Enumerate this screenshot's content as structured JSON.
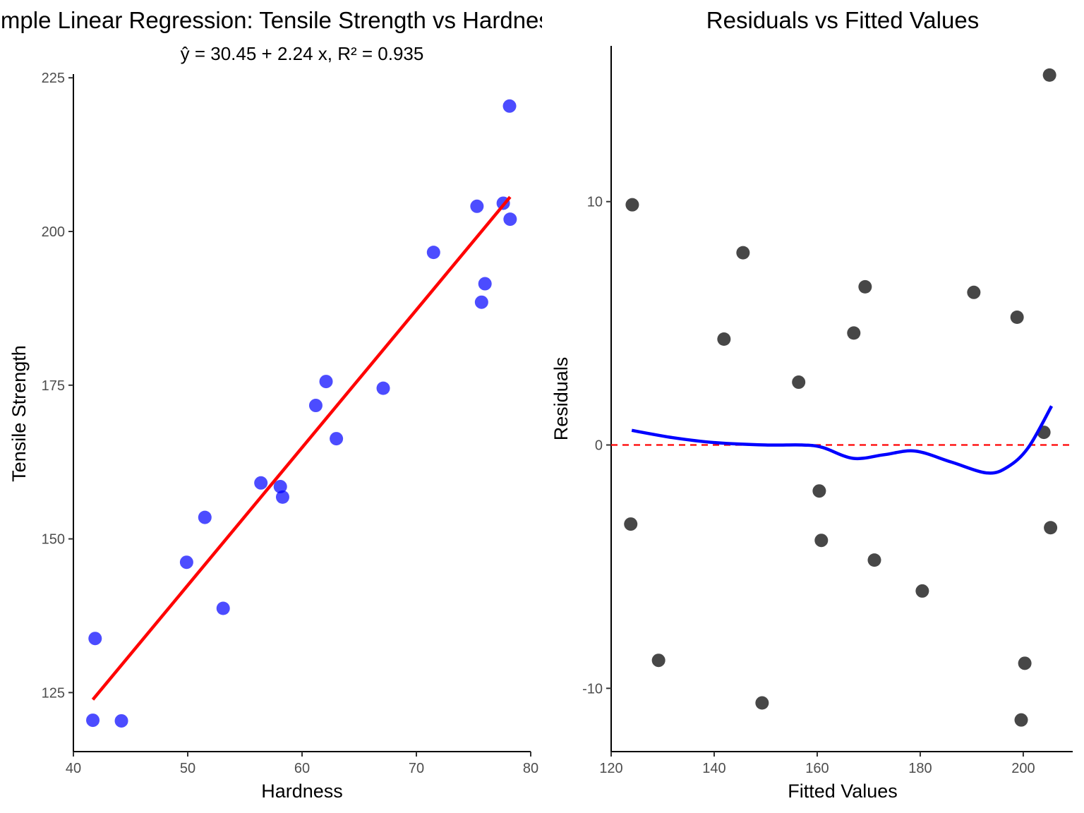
{
  "chart_data": [
    {
      "type": "scatter",
      "title": "Simple Linear Regression: Tensile Strength vs Hardness",
      "subtitle": "ŷ = 30.45 + 2.24 x, R² = 0.935",
      "xlabel": "Hardness",
      "ylabel": "Tensile Strength",
      "xlim": [
        40,
        80
      ],
      "ylim": [
        115.4,
        225.6
      ],
      "xticks": [
        40,
        50,
        60,
        70,
        80
      ],
      "yticks": [
        125,
        150,
        175,
        200,
        225
      ],
      "grid": false,
      "point_color": "#0000FF",
      "line_color": "#FF0000",
      "points": [
        {
          "x": 78.15,
          "y": 220.4
        },
        {
          "x": 77.6,
          "y": 204.6
        },
        {
          "x": 75.3,
          "y": 204.1
        },
        {
          "x": 78.2,
          "y": 202.0
        },
        {
          "x": 71.5,
          "y": 196.6
        },
        {
          "x": 76.0,
          "y": 191.5
        },
        {
          "x": 75.7,
          "y": 188.5
        },
        {
          "x": 62.1,
          "y": 175.6
        },
        {
          "x": 67.1,
          "y": 174.5
        },
        {
          "x": 61.2,
          "y": 171.7
        },
        {
          "x": 63.0,
          "y": 166.3
        },
        {
          "x": 56.4,
          "y": 159.1
        },
        {
          "x": 58.1,
          "y": 158.5
        },
        {
          "x": 58.3,
          "y": 156.8
        },
        {
          "x": 51.5,
          "y": 153.5
        },
        {
          "x": 49.9,
          "y": 146.2
        },
        {
          "x": 53.1,
          "y": 138.7
        },
        {
          "x": 41.9,
          "y": 133.8
        },
        {
          "x": 41.7,
          "y": 120.5
        },
        {
          "x": 44.2,
          "y": 120.4
        }
      ],
      "fit": {
        "intercept": 30.45,
        "slope": 2.24,
        "x_from": 41.7,
        "x_to": 78.2
      }
    },
    {
      "type": "scatter",
      "title": "Residuals vs Fitted Values",
      "xlabel": "Fitted Values",
      "ylabel": "Residuals",
      "xlim": [
        120,
        209.6
      ],
      "ylim": [
        -12.6,
        16.4
      ],
      "xticks": [
        120,
        140,
        160,
        180,
        200
      ],
      "yticks": [
        -10,
        0,
        10
      ],
      "grid": false,
      "point_color": "#333333",
      "smooth_color": "#0000FF",
      "refline": {
        "y": 0,
        "color": "#FF0000",
        "style": "dashed"
      },
      "points": [
        {
          "x": 124.1,
          "y": 9.87
        },
        {
          "x": 145.6,
          "y": 7.9
        },
        {
          "x": 169.3,
          "y": 6.5
        },
        {
          "x": 190.4,
          "y": 6.27
        },
        {
          "x": 198.8,
          "y": 5.25
        },
        {
          "x": 141.9,
          "y": 4.35
        },
        {
          "x": 167.1,
          "y": 4.6
        },
        {
          "x": 156.4,
          "y": 2.58
        },
        {
          "x": 204.0,
          "y": 0.52
        },
        {
          "x": 205.1,
          "y": 15.2
        },
        {
          "x": 160.4,
          "y": -1.89
        },
        {
          "x": 123.8,
          "y": -3.25
        },
        {
          "x": 205.3,
          "y": -3.4
        },
        {
          "x": 160.8,
          "y": -3.92
        },
        {
          "x": 171.1,
          "y": -4.73
        },
        {
          "x": 180.4,
          "y": -6.0
        },
        {
          "x": 129.2,
          "y": -8.85
        },
        {
          "x": 200.3,
          "y": -8.97
        },
        {
          "x": 149.3,
          "y": -10.6
        },
        {
          "x": 199.6,
          "y": -11.3
        }
      ],
      "smooth": [
        {
          "x": 124,
          "y": 0.6
        },
        {
          "x": 132,
          "y": 0.3
        },
        {
          "x": 140,
          "y": 0.1
        },
        {
          "x": 150,
          "y": 0.0
        },
        {
          "x": 157,
          "y": 0.0
        },
        {
          "x": 161,
          "y": -0.1
        },
        {
          "x": 167,
          "y": -0.55
        },
        {
          "x": 173,
          "y": -0.4
        },
        {
          "x": 179,
          "y": -0.25
        },
        {
          "x": 186,
          "y": -0.7
        },
        {
          "x": 193,
          "y": -1.15
        },
        {
          "x": 197,
          "y": -0.9
        },
        {
          "x": 201,
          "y": -0.1
        },
        {
          "x": 205.5,
          "y": 1.6
        }
      ]
    }
  ]
}
